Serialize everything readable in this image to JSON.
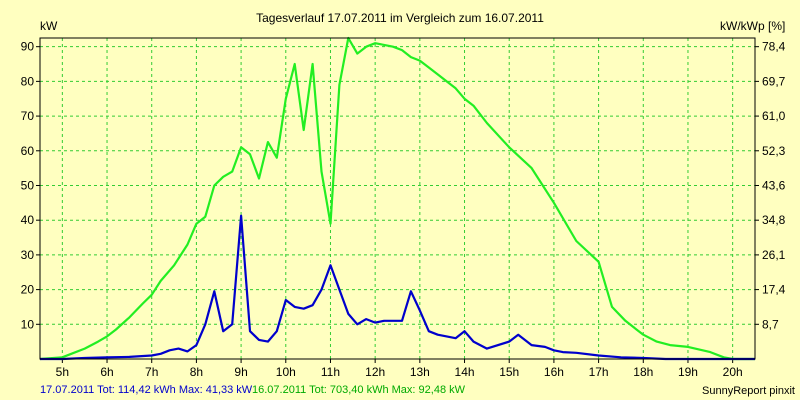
{
  "chart_data": {
    "type": "line",
    "title": "Tagesverlauf 17.07.2011 im Vergleich zum 16.07.2011",
    "ylabel_left": "kW",
    "ylabel_right": "kW/kWp [%]",
    "xlim": [
      4.5,
      20.5
    ],
    "ylim": [
      0,
      92.5
    ],
    "grid": true,
    "x_tick_values": [
      5,
      6,
      7,
      8,
      9,
      10,
      11,
      12,
      13,
      14,
      15,
      16,
      17,
      18,
      19,
      20
    ],
    "x_tick_labels": [
      "5h",
      "6h",
      "7h",
      "8h",
      "9h",
      "10h",
      "11h",
      "12h",
      "13h",
      "14h",
      "15h",
      "16h",
      "17h",
      "18h",
      "19h",
      "20h"
    ],
    "y_tick_values": [
      10,
      20,
      30,
      40,
      50,
      60,
      70,
      80,
      90
    ],
    "y_tick_labels": [
      "10",
      "20",
      "30",
      "40",
      "50",
      "60",
      "70",
      "80",
      "90"
    ],
    "y2_tick_labels": [
      "8,7",
      "17,4",
      "26,1",
      "34,8",
      "43,6",
      "52,3",
      "61,0",
      "69,7",
      "78,4"
    ],
    "series": [
      {
        "name": "16.07.2011",
        "color": "#22ee22",
        "x": [
          4.5,
          5.0,
          5.2,
          5.5,
          5.8,
          6.0,
          6.2,
          6.5,
          6.8,
          7.0,
          7.2,
          7.5,
          7.8,
          8.0,
          8.2,
          8.4,
          8.6,
          8.8,
          9.0,
          9.2,
          9.4,
          9.6,
          9.8,
          10.0,
          10.2,
          10.4,
          10.6,
          10.8,
          11.0,
          11.2,
          11.4,
          11.6,
          11.8,
          12.0,
          12.2,
          12.4,
          12.6,
          12.8,
          13.0,
          13.2,
          13.4,
          13.6,
          13.8,
          14.0,
          14.2,
          14.5,
          15.0,
          15.5,
          16.0,
          16.5,
          17.0,
          17.3,
          17.6,
          17.8,
          18.0,
          18.3,
          18.6,
          19.0,
          19.5,
          19.8,
          20.0,
          20.5
        ],
        "y": [
          0,
          0.5,
          1.5,
          3,
          5,
          6.5,
          8.5,
          12,
          16,
          18.5,
          22.5,
          27,
          33,
          39,
          41,
          50,
          52.5,
          54,
          61,
          59,
          52,
          62.5,
          58,
          75,
          85,
          66,
          85,
          54,
          39,
          79,
          92.5,
          88,
          90,
          91,
          90.5,
          90,
          89,
          87,
          86,
          84,
          82,
          80,
          78,
          75,
          73,
          68,
          61,
          55,
          45,
          34,
          28,
          15,
          11,
          9,
          7,
          5,
          4,
          3.5,
          2,
          0.5,
          0,
          0
        ]
      },
      {
        "name": "17.07.2011",
        "color": "#0000cc",
        "x": [
          4.5,
          5.0,
          5.5,
          6.0,
          6.5,
          7.0,
          7.2,
          7.4,
          7.6,
          7.8,
          8.0,
          8.2,
          8.4,
          8.6,
          8.8,
          9.0,
          9.2,
          9.4,
          9.6,
          9.8,
          10.0,
          10.2,
          10.4,
          10.6,
          10.8,
          11.0,
          11.2,
          11.4,
          11.6,
          11.8,
          12.0,
          12.2,
          12.4,
          12.6,
          12.8,
          13.0,
          13.2,
          13.4,
          13.6,
          13.8,
          14.0,
          14.2,
          14.5,
          15.0,
          15.2,
          15.5,
          15.8,
          16.0,
          16.2,
          16.5,
          17.0,
          17.5,
          18.0,
          18.5,
          19.0,
          19.5,
          20.0,
          20.5
        ],
        "y": [
          0,
          0,
          0.3,
          0.5,
          0.6,
          1,
          1.5,
          2.5,
          3,
          2.2,
          4,
          10,
          19.5,
          8,
          10,
          41.3,
          8,
          5.5,
          5,
          8,
          17,
          15,
          14.5,
          15.5,
          20,
          27,
          20,
          13,
          10,
          11.5,
          10.5,
          11,
          11,
          11,
          19.5,
          14,
          8,
          7,
          6.5,
          6,
          8,
          5,
          3,
          5,
          7,
          4,
          3.5,
          2.5,
          2,
          1.8,
          1,
          0.5,
          0.3,
          0,
          0,
          0,
          0,
          0
        ]
      }
    ],
    "footer_blue": "17.07.2011 Tot: 114,42 kWh Max: 41,33 kW",
    "footer_green": "16.07.2011 Tot: 703,40 kWh Max: 92,48 kW",
    "credit": "SunnyReport pinxit"
  }
}
